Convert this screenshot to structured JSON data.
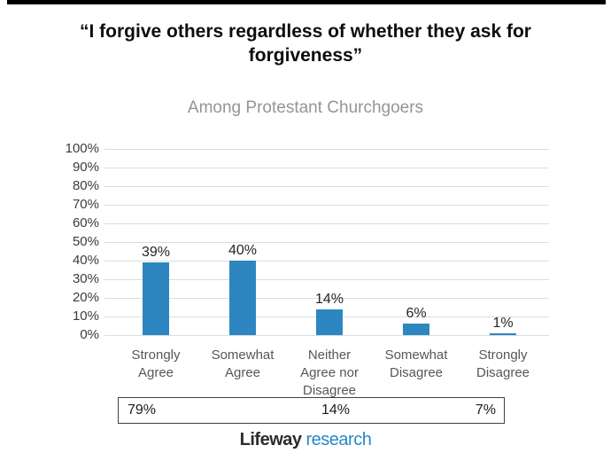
{
  "chart_data": {
    "type": "bar",
    "title": "“I forgive others regardless of whether they ask for forgiveness”",
    "subtitle": "Among Protestant Churchgoers",
    "categories": [
      "Strongly Agree",
      "Somewhat Agree",
      "Neither Agree nor Disagree",
      "Somewhat Disagree",
      "Strongly Disagree"
    ],
    "values": [
      39,
      40,
      14,
      6,
      1
    ],
    "value_labels": [
      "39%",
      "40%",
      "14%",
      "6%",
      "1%"
    ],
    "ylim": [
      0,
      100
    ],
    "ytick_step": 10,
    "ytick_labels": [
      "100%",
      "90%",
      "80%",
      "70%",
      "60%",
      "50%",
      "40%",
      "30%",
      "20%",
      "10%",
      "0%"
    ],
    "grid": true,
    "legend": false,
    "bar_color": "#2e86c1",
    "summary_row": {
      "agree_total": "79%",
      "neutral": "14%",
      "disagree_total": "7%"
    }
  },
  "footer": {
    "brand_black": "Lifeway",
    "brand_blue": "research",
    "brand_blue_color": "#2688c8"
  },
  "colors": {
    "bar": "#2e86c1",
    "gridline": "#d9dde0",
    "subtitle_gray": "#909699",
    "top_rule": "#000000"
  }
}
